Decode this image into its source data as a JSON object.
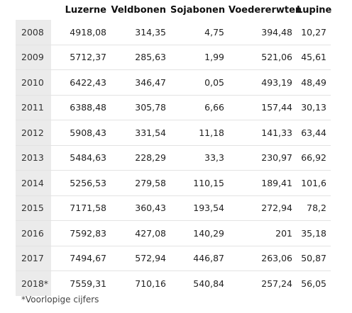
{
  "table": {
    "columns": [
      "",
      "Luzerne",
      "Veldbonen",
      "Sojabonen",
      "Voedererwten",
      "Lupine"
    ],
    "rows": [
      [
        "2008",
        "4918,08",
        "314,35",
        "4,75",
        "394,48",
        "10,27"
      ],
      [
        "2009",
        "5712,37",
        "285,63",
        "1,99",
        "521,06",
        "45,61"
      ],
      [
        "2010",
        "6422,43",
        "346,47",
        "0,05",
        "493,19",
        "48,49"
      ],
      [
        "2011",
        "6388,48",
        "305,78",
        "6,66",
        "157,44",
        "30,13"
      ],
      [
        "2012",
        "5908,43",
        "331,54",
        "11,18",
        "141,33",
        "63,44"
      ],
      [
        "2013",
        "5484,63",
        "228,29",
        "33,3",
        "230,97",
        "66,92"
      ],
      [
        "2014",
        "5256,53",
        "279,58",
        "110,15",
        "189,41",
        "101,6"
      ],
      [
        "2015",
        "7171,58",
        "360,43",
        "193,54",
        "272,94",
        "78,2"
      ],
      [
        "2016",
        "7592,83",
        "427,08",
        "140,29",
        "201",
        "35,18"
      ],
      [
        "2017",
        "7494,67",
        "572,94",
        "446,87",
        "263,06",
        "50,87"
      ],
      [
        "2018*",
        "7559,31",
        "710,16",
        "540,84",
        "257,24",
        "56,05"
      ]
    ]
  },
  "footnote": "*Voorlopige cijfers"
}
